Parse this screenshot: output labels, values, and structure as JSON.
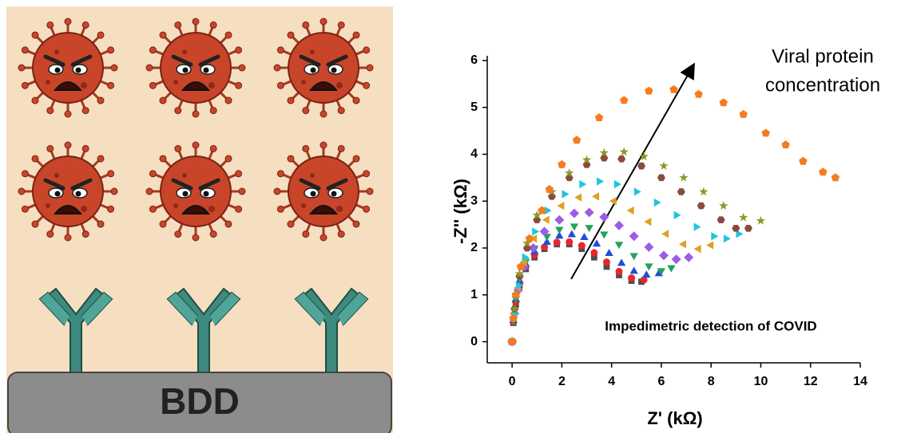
{
  "illustration": {
    "electrode_label": "BDD"
  },
  "chart_data": {
    "type": "scatter",
    "x_label": "Z' (kΩ)",
    "y_label": "-Z'' (kΩ)",
    "annotations": [
      "Viral protein",
      "concentration",
      "Impedimetric detection of COVID"
    ],
    "xlim": [
      -1,
      14
    ],
    "xticks": [
      0,
      2,
      4,
      6,
      8,
      10,
      12,
      14
    ],
    "ylim": [
      -0.45,
      6.1
    ],
    "yticks": [
      0,
      1,
      2,
      3,
      4,
      5,
      6
    ],
    "series": [
      {
        "color": "#4d4d4d",
        "marker": "square",
        "x": [
          0,
          0.05,
          0.15,
          0.3,
          0.55,
          0.9,
          1.3,
          1.8,
          2.3,
          2.8,
          3.3,
          3.8,
          4.3,
          4.8,
          5.2
        ],
        "values": [
          0,
          0.4,
          0.8,
          1.2,
          1.55,
          1.8,
          1.98,
          2.08,
          2.08,
          1.98,
          1.8,
          1.6,
          1.42,
          1.3,
          1.28
        ]
      },
      {
        "color": "#e8262d",
        "marker": "circle",
        "x": [
          0,
          0.05,
          0.15,
          0.3,
          0.55,
          0.9,
          1.3,
          1.8,
          2.3,
          2.8,
          3.3,
          3.8,
          4.3,
          4.8,
          5.3
        ],
        "values": [
          0,
          0.42,
          0.85,
          1.25,
          1.6,
          1.85,
          2.02,
          2.12,
          2.13,
          2.05,
          1.9,
          1.7,
          1.5,
          1.36,
          1.32
        ]
      },
      {
        "color": "#1f4ed8",
        "marker": "triangle-up",
        "x": [
          0,
          0.05,
          0.15,
          0.3,
          0.55,
          0.9,
          1.4,
          1.9,
          2.4,
          2.9,
          3.4,
          3.9,
          4.4,
          4.9,
          5.4,
          5.9
        ],
        "values": [
          0,
          0.45,
          0.9,
          1.3,
          1.65,
          1.92,
          2.12,
          2.25,
          2.28,
          2.22,
          2.08,
          1.88,
          1.67,
          1.5,
          1.42,
          1.45
        ]
      },
      {
        "color": "#22a35a",
        "marker": "triangle-down",
        "x": [
          0,
          0.05,
          0.15,
          0.3,
          0.55,
          0.9,
          1.4,
          1.9,
          2.5,
          3.1,
          3.7,
          4.3,
          4.9,
          5.5,
          6.0,
          6.4
        ],
        "values": [
          0,
          0.45,
          0.92,
          1.35,
          1.72,
          2.0,
          2.25,
          2.4,
          2.47,
          2.44,
          2.3,
          2.08,
          1.84,
          1.62,
          1.52,
          1.58
        ]
      },
      {
        "color": "#9d5ce6",
        "marker": "diamond",
        "x": [
          0,
          0.1,
          0.25,
          0.5,
          0.85,
          1.3,
          1.9,
          2.5,
          3.1,
          3.7,
          4.3,
          4.9,
          5.5,
          6.1,
          6.6,
          7.1
        ],
        "values": [
          0,
          0.6,
          1.1,
          1.6,
          2.0,
          2.35,
          2.6,
          2.74,
          2.76,
          2.66,
          2.48,
          2.25,
          2.02,
          1.84,
          1.76,
          1.8
        ]
      },
      {
        "color": "#e0a020",
        "marker": "triangle-left",
        "x": [
          0,
          0.1,
          0.25,
          0.5,
          0.9,
          1.4,
          2.0,
          2.7,
          3.4,
          4.1,
          4.8,
          5.5,
          6.2,
          6.9,
          7.5,
          8.0
        ],
        "values": [
          0,
          0.6,
          1.15,
          1.7,
          2.2,
          2.6,
          2.9,
          3.08,
          3.1,
          3.0,
          2.8,
          2.56,
          2.3,
          2.08,
          1.98,
          2.06
        ]
      },
      {
        "color": "#21c4e0",
        "marker": "triangle-right",
        "x": [
          0,
          0.1,
          0.25,
          0.5,
          0.9,
          1.4,
          2.1,
          2.8,
          3.5,
          4.2,
          5.0,
          5.8,
          6.6,
          7.4,
          8.1,
          8.6,
          9.1
        ],
        "values": [
          0,
          0.6,
          1.2,
          1.8,
          2.35,
          2.8,
          3.15,
          3.36,
          3.42,
          3.36,
          3.2,
          2.97,
          2.7,
          2.45,
          2.25,
          2.2,
          2.3
        ]
      },
      {
        "color": "#8b4a3c",
        "marker": "hexagon",
        "x": [
          0,
          0.1,
          0.3,
          0.6,
          1.0,
          1.6,
          2.3,
          3.0,
          3.7,
          4.4,
          5.2,
          6.0,
          6.8,
          7.6,
          8.4,
          9.0,
          9.5
        ],
        "values": [
          0,
          0.7,
          1.4,
          2.0,
          2.6,
          3.1,
          3.5,
          3.78,
          3.92,
          3.9,
          3.75,
          3.5,
          3.2,
          2.9,
          2.6,
          2.42,
          2.42
        ]
      },
      {
        "color": "#8a9a24",
        "marker": "star",
        "x": [
          0,
          0.1,
          0.3,
          0.6,
          1.0,
          1.6,
          2.3,
          3.0,
          3.7,
          4.5,
          5.3,
          6.1,
          6.9,
          7.7,
          8.5,
          9.3,
          10.0
        ],
        "values": [
          0,
          0.7,
          1.45,
          2.1,
          2.7,
          3.2,
          3.6,
          3.88,
          4.03,
          4.05,
          3.95,
          3.75,
          3.5,
          3.2,
          2.9,
          2.65,
          2.58
        ]
      },
      {
        "color": "#f47c20",
        "marker": "pentagon",
        "x": [
          0,
          0.05,
          0.15,
          0.35,
          0.7,
          1.2,
          1.5,
          2.0,
          2.6,
          3.5,
          4.5,
          5.5,
          6.5,
          7.5,
          8.5,
          9.3,
          10.2,
          11.0,
          11.7,
          12.5,
          13.0
        ],
        "values": [
          0,
          0.5,
          1.0,
          1.6,
          2.2,
          2.8,
          3.25,
          3.78,
          4.3,
          4.78,
          5.15,
          5.35,
          5.38,
          5.28,
          5.1,
          4.85,
          4.45,
          4.2,
          3.85,
          3.62,
          3.5
        ]
      }
    ]
  }
}
